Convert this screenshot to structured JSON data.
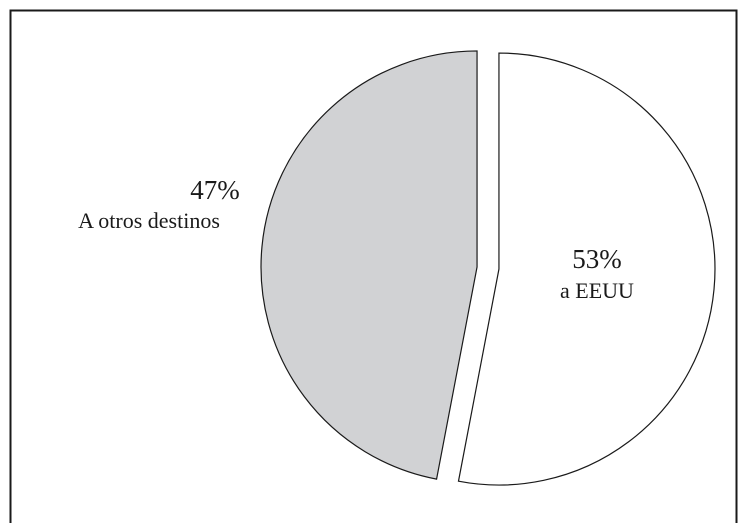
{
  "chart_data": {
    "type": "pie",
    "title": "",
    "slices": [
      {
        "label": "a EEUU",
        "percent_label": "53%",
        "value": 53,
        "fill": "#ffffff",
        "exploded": true
      },
      {
        "label": "A otros destinos",
        "percent_label": "47%",
        "value": 47,
        "fill": "#d1d2d4",
        "exploded": true
      }
    ],
    "stroke_color": "#1a1a1a",
    "frame_color": "#1a1a1a",
    "start_angle_deg": 0,
    "direction": "clockwise"
  }
}
